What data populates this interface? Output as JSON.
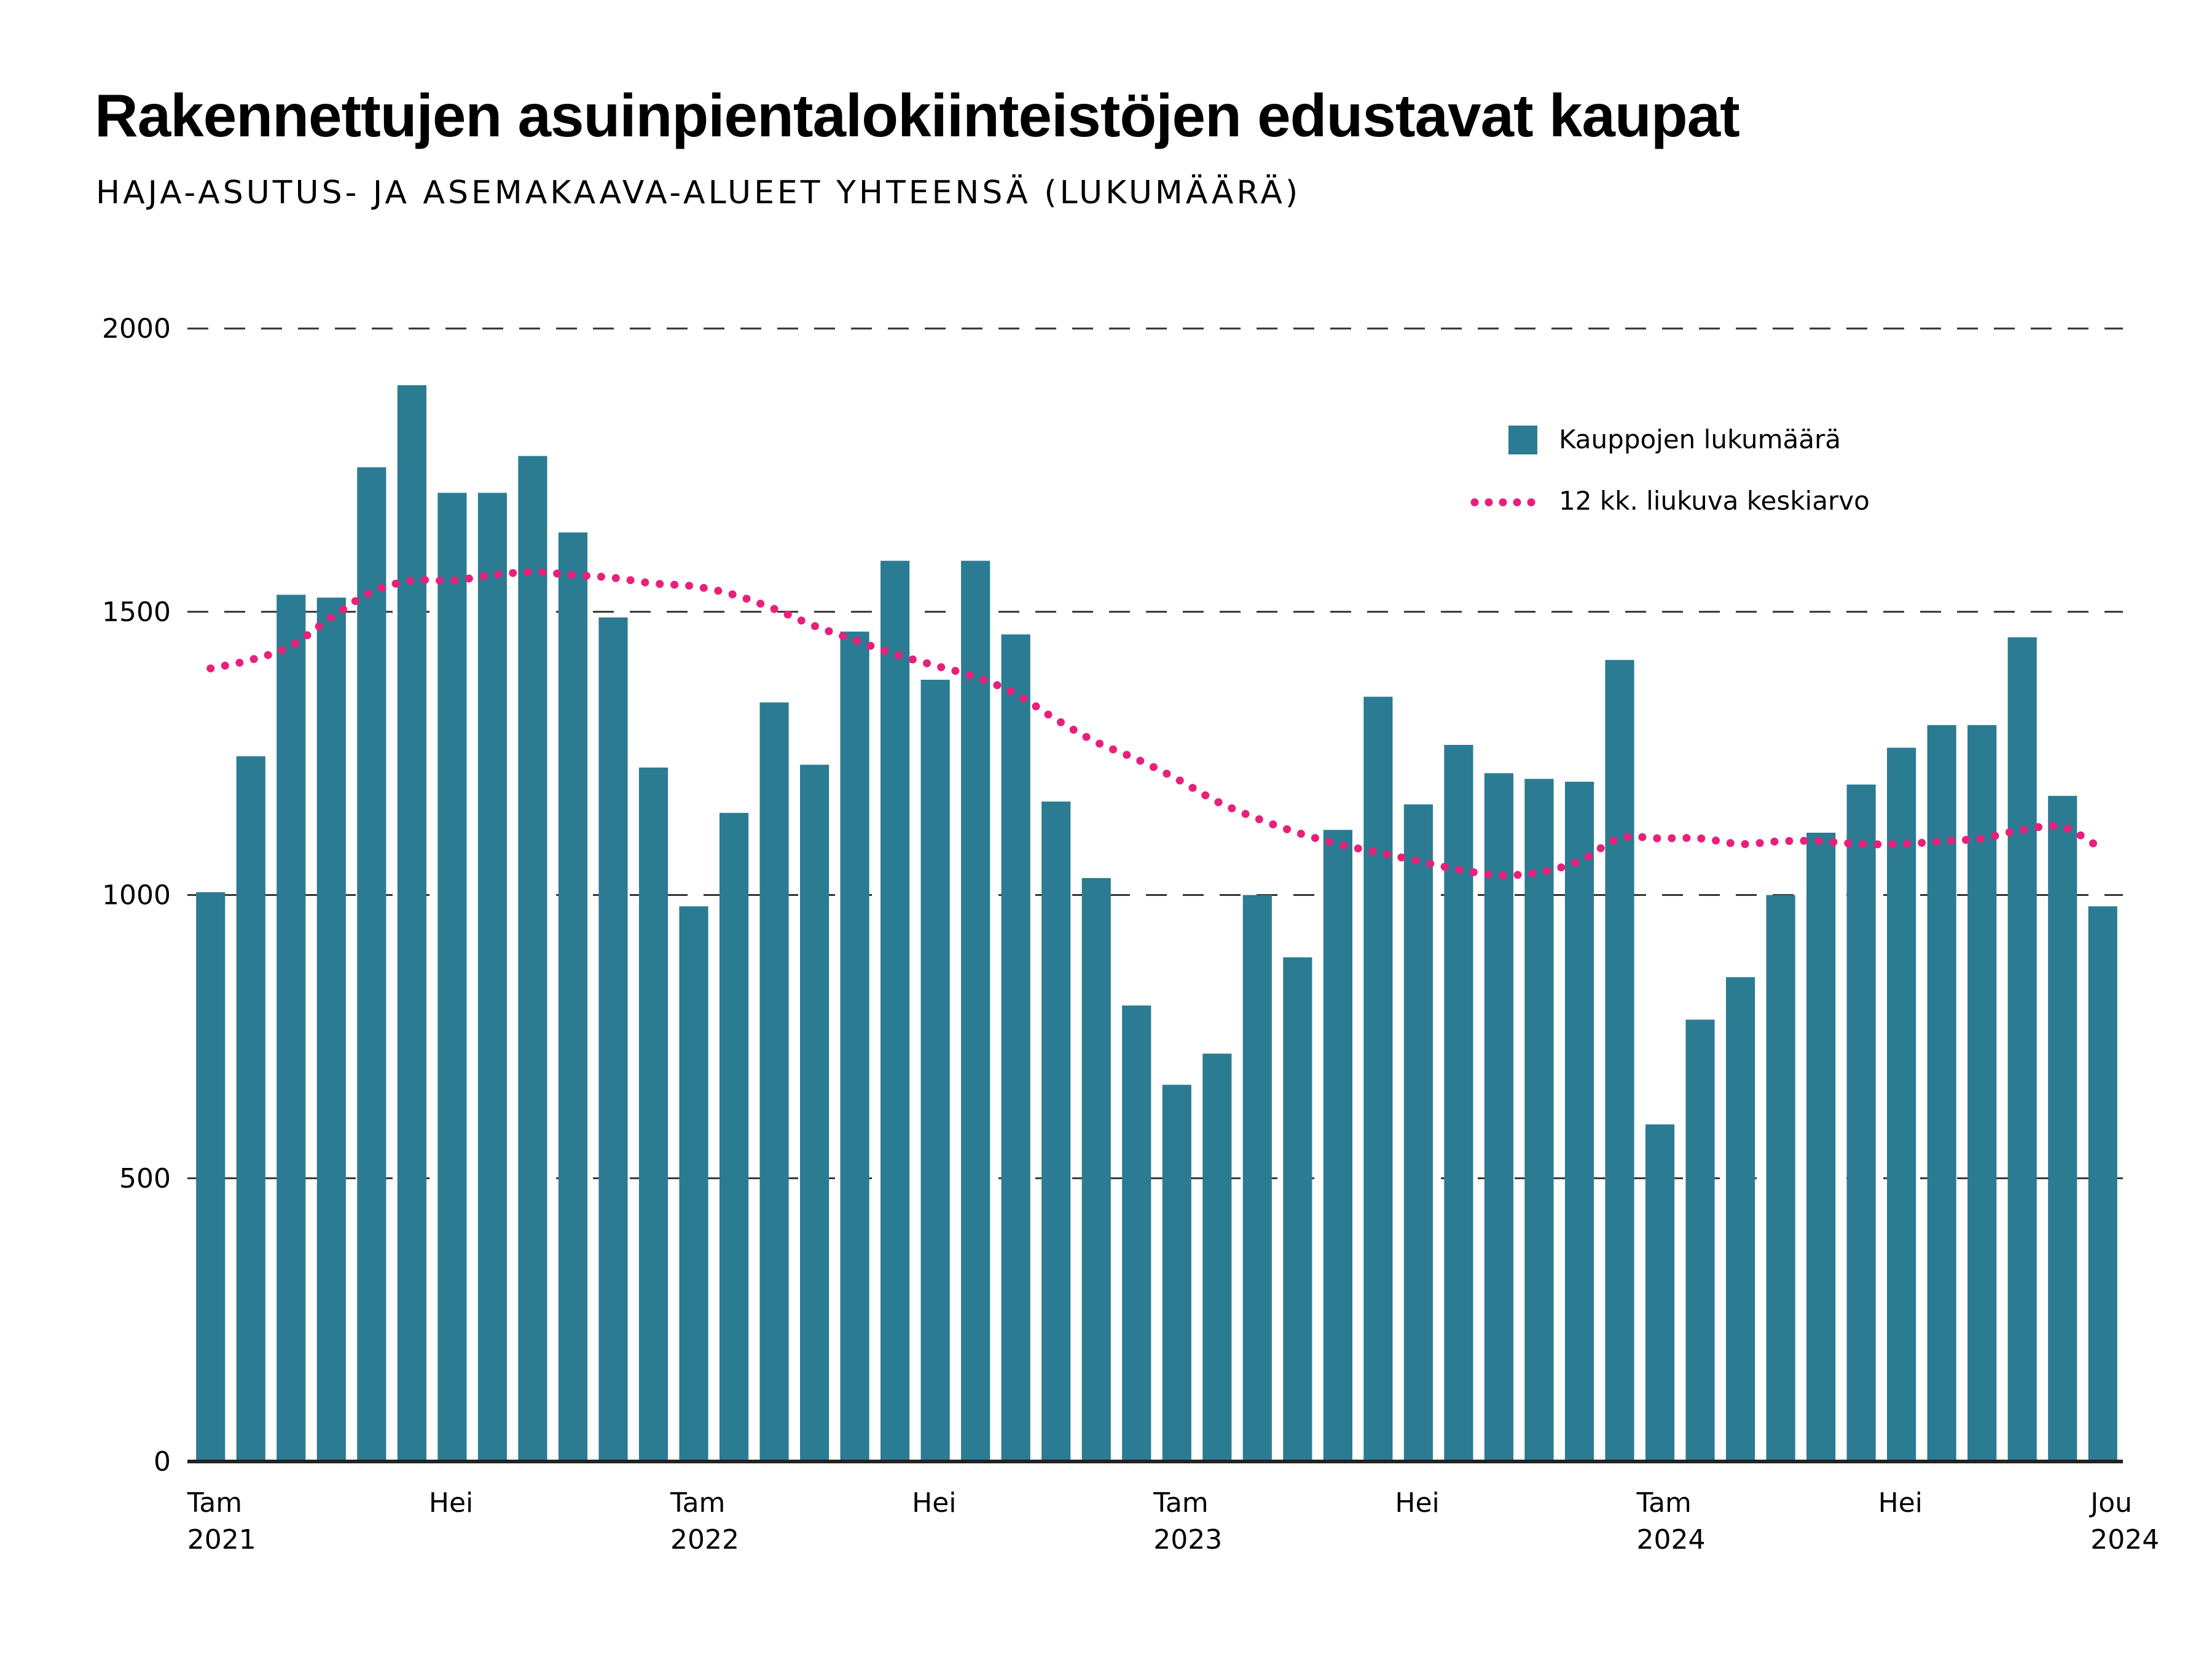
{
  "title": "Rakennettujen asuinpientalokiinteistöjen edustavat kaupat",
  "subtitle": "HAJA-ASUTUS- JA ASEMAKAAVA-ALUEET YHTEENSÄ (LUKUMÄÄRÄ)",
  "colors": {
    "bar": "#2b7b93",
    "moving_average": "#e8207a",
    "gridline": "#333333",
    "baseline": "#222222"
  },
  "chart_data": {
    "type": "bar",
    "title": "Rakennettujen asuinpientalokiinteistöjen edustavat kaupat",
    "subtitle": "HAJA-ASUTUS- JA ASEMAKAAVA-ALUEET YHTEENSÄ (LUKUMÄÄRÄ)",
    "ylim": [
      0,
      2000
    ],
    "y_ticks": [
      0,
      500,
      1000,
      1500,
      2000
    ],
    "grid": "dashed horizontal",
    "legend_position": "top-right",
    "x_tick_labels": [
      {
        "index": 0,
        "lines": [
          "Tam",
          "2021"
        ]
      },
      {
        "index": 6,
        "lines": [
          "Hei"
        ]
      },
      {
        "index": 12,
        "lines": [
          "Tam",
          "2022"
        ]
      },
      {
        "index": 18,
        "lines": [
          "Hei"
        ]
      },
      {
        "index": 24,
        "lines": [
          "Tam",
          "2023"
        ]
      },
      {
        "index": 30,
        "lines": [
          "Hei"
        ]
      },
      {
        "index": 36,
        "lines": [
          "Tam",
          "2024"
        ]
      },
      {
        "index": 42,
        "lines": [
          "Hei"
        ]
      },
      {
        "index": 47,
        "lines": [
          "Jou",
          "2024"
        ]
      }
    ],
    "series": [
      {
        "name": "Kauppojen lukumäärä",
        "type": "bar",
        "values": [
          1005,
          1245,
          1530,
          1525,
          1755,
          1900,
          1710,
          1710,
          1775,
          1640,
          1490,
          1225,
          980,
          1145,
          1340,
          1230,
          1465,
          1590,
          1380,
          1590,
          1460,
          1165,
          1030,
          805,
          665,
          720,
          1000,
          890,
          1115,
          1350,
          1160,
          1265,
          1215,
          1205,
          1200,
          1415,
          595,
          780,
          855,
          1000,
          1110,
          1195,
          1260,
          1300,
          1300,
          1455,
          1175,
          980
        ]
      },
      {
        "name": "12 kk. liukuva keskiarvo",
        "type": "line",
        "style": "dotted",
        "values": [
          1400,
          1415,
          1440,
          1490,
          1535,
          1555,
          1555,
          1565,
          1570,
          1565,
          1560,
          1550,
          1545,
          1530,
          1505,
          1475,
          1450,
          1425,
          1405,
          1385,
          1355,
          1310,
          1270,
          1240,
          1205,
          1165,
          1135,
          1110,
          1090,
          1075,
          1060,
          1045,
          1035,
          1040,
          1060,
          1100,
          1100,
          1100,
          1090,
          1095,
          1095,
          1090,
          1090,
          1095,
          1100,
          1115,
          1120,
          1080
        ]
      }
    ]
  }
}
